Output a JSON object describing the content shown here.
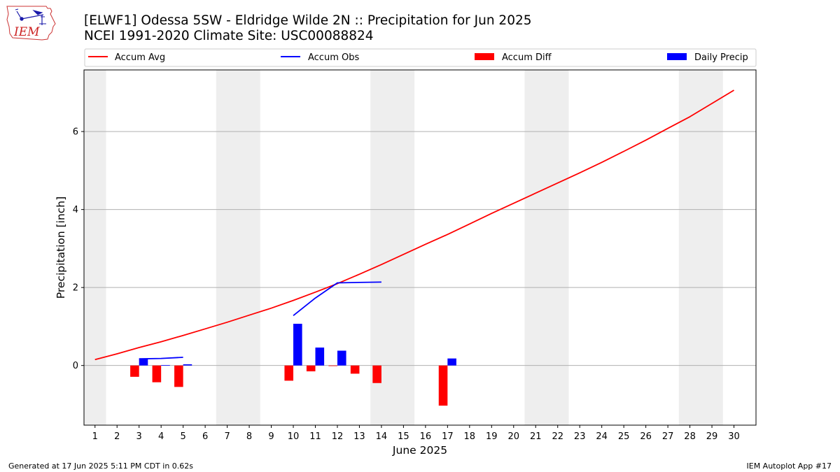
{
  "logo": {
    "text": "IEM"
  },
  "footer": {
    "left": "Generated at 17 Jun 2025 5:11 PM CDT in 0.62s",
    "right": "IEM Autoplot App #17"
  },
  "colors": {
    "accum_avg": "#ff0000",
    "accum_obs": "#0000ff",
    "accum_diff": "#ff0000",
    "daily_precip": "#0000ff",
    "weekend_band": "#eeeeee",
    "grid": "#b0b0b0"
  },
  "chart_data": {
    "type": "bar",
    "title": "[ELWF1] Odessa 5SW - Eldridge Wilde 2N :: Precipitation for Jun 2025",
    "subtitle": "NCEI 1991-2020 Climate Site: USC00088824",
    "xlabel": "June 2025",
    "ylabel": "Precipitation [inch]",
    "xlim": [
      0.5,
      31.0
    ],
    "ylim": [
      -1.53,
      7.58
    ],
    "x_ticks": [
      1,
      2,
      3,
      4,
      5,
      6,
      7,
      8,
      9,
      10,
      11,
      12,
      13,
      14,
      15,
      16,
      17,
      18,
      19,
      20,
      21,
      22,
      23,
      24,
      25,
      26,
      27,
      28,
      29,
      30
    ],
    "y_ticks": [
      0,
      2,
      4,
      6
    ],
    "grid": "horizontal",
    "legend_placement": "top",
    "weekend_bands": [
      [
        0.5,
        1.5
      ],
      [
        6.5,
        8.5
      ],
      [
        13.5,
        15.5
      ],
      [
        20.5,
        22.5
      ],
      [
        27.5,
        29.5
      ]
    ],
    "legend": [
      "Accum Avg",
      "Accum Obs",
      "Accum Diff",
      "Daily Precip"
    ],
    "series": [
      {
        "name": "Accum Avg",
        "type": "line",
        "x": [
          1,
          2,
          3,
          4,
          5,
          6,
          7,
          8,
          9,
          10,
          11,
          12,
          13,
          14,
          15,
          16,
          17,
          18,
          19,
          20,
          21,
          22,
          23,
          24,
          25,
          26,
          27,
          28,
          29,
          30
        ],
        "values": [
          0.15,
          0.3,
          0.46,
          0.61,
          0.77,
          0.94,
          1.11,
          1.29,
          1.47,
          1.67,
          1.88,
          2.1,
          2.34,
          2.59,
          2.85,
          3.11,
          3.36,
          3.63,
          3.9,
          4.16,
          4.42,
          4.68,
          4.94,
          5.21,
          5.49,
          5.78,
          6.08,
          6.38,
          6.72,
          7.06
        ]
      },
      {
        "name": "Accum Obs",
        "type": "line",
        "x": [
          3,
          4,
          5,
          null,
          10,
          11,
          12,
          13,
          14
        ],
        "values": [
          0.17,
          0.18,
          0.21,
          null,
          1.28,
          1.73,
          2.12,
          2.13,
          2.14
        ]
      },
      {
        "name": "Accum Diff",
        "type": "bar",
        "x": [
          3,
          4,
          5,
          10,
          11,
          12,
          13,
          14,
          17
        ],
        "values": [
          -0.29,
          -0.43,
          -0.55,
          -0.39,
          -0.15,
          -0.01,
          -0.21,
          -0.45,
          -1.03
        ]
      },
      {
        "name": "Daily Precip",
        "type": "bar",
        "x": [
          3,
          4,
          5,
          10,
          11,
          12,
          17
        ],
        "values": [
          0.17,
          0.01,
          0.03,
          1.07,
          0.46,
          0.38,
          0.18
        ]
      }
    ]
  }
}
